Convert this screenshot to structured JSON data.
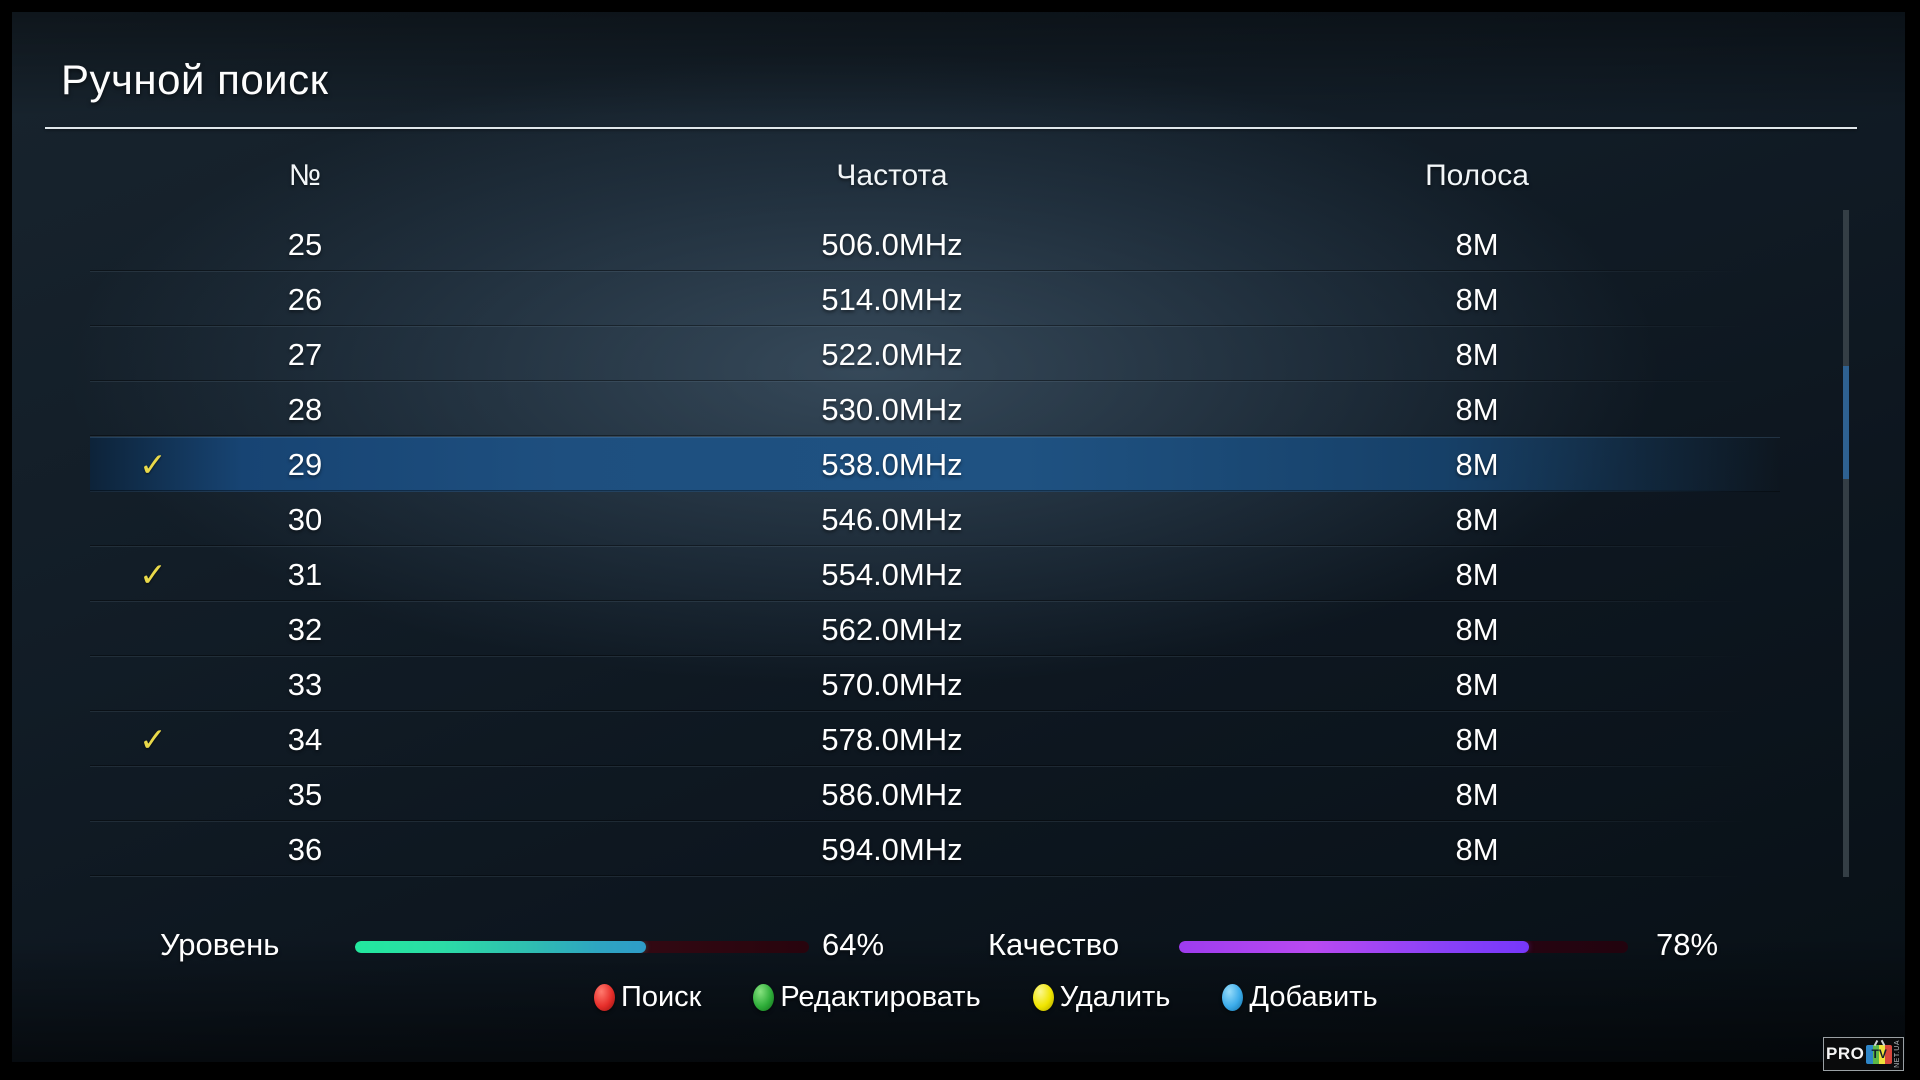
{
  "title": "Ручной поиск",
  "table": {
    "headers": {
      "num": "№",
      "freq": "Частота",
      "band": "Полоса"
    },
    "rows": [
      {
        "num": "25",
        "freq": "506.0MHz",
        "band": "8M",
        "checked": false,
        "selected": false
      },
      {
        "num": "26",
        "freq": "514.0MHz",
        "band": "8M",
        "checked": false,
        "selected": false
      },
      {
        "num": "27",
        "freq": "522.0MHz",
        "band": "8M",
        "checked": false,
        "selected": false
      },
      {
        "num": "28",
        "freq": "530.0MHz",
        "band": "8M",
        "checked": false,
        "selected": false
      },
      {
        "num": "29",
        "freq": "538.0MHz",
        "band": "8M",
        "checked": true,
        "selected": true
      },
      {
        "num": "30",
        "freq": "546.0MHz",
        "band": "8M",
        "checked": false,
        "selected": false
      },
      {
        "num": "31",
        "freq": "554.0MHz",
        "band": "8M",
        "checked": true,
        "selected": false
      },
      {
        "num": "32",
        "freq": "562.0MHz",
        "band": "8M",
        "checked": false,
        "selected": false
      },
      {
        "num": "33",
        "freq": "570.0MHz",
        "band": "8M",
        "checked": false,
        "selected": false
      },
      {
        "num": "34",
        "freq": "578.0MHz",
        "band": "8M",
        "checked": true,
        "selected": false
      },
      {
        "num": "35",
        "freq": "586.0MHz",
        "band": "8M",
        "checked": false,
        "selected": false
      },
      {
        "num": "36",
        "freq": "594.0MHz",
        "band": "8M",
        "checked": false,
        "selected": false
      }
    ]
  },
  "check_icon": "✓",
  "signal": {
    "level_label": "Уровень",
    "level_percent": 64,
    "level_text": "64%",
    "quality_label": "Качество",
    "quality_percent": 78,
    "quality_text": "78%"
  },
  "legend": [
    {
      "name": "search",
      "color_name": "red",
      "color": "#e62e2a",
      "label": "Поиск"
    },
    {
      "name": "edit",
      "color_name": "green",
      "color": "#2fae3a",
      "label": "Редактировать"
    },
    {
      "name": "delete",
      "color_name": "yellow",
      "color": "#f0e500",
      "label": "Удалить"
    },
    {
      "name": "add",
      "color_name": "blue",
      "color": "#3cacea",
      "label": "Добавить"
    }
  ],
  "logo": {
    "pro": "PRO",
    "tv": "TV",
    "net": "NET.UA"
  },
  "colors": {
    "selected_row": "#1e4f7f",
    "checkmark": "#e9d94a",
    "level_fill_start": "#22e89e",
    "level_fill_end": "#2e9cc8",
    "quality_fill_start": "#9d3cee",
    "quality_fill_end": "#7637fb",
    "scroll_thumb": "#2e6191"
  }
}
